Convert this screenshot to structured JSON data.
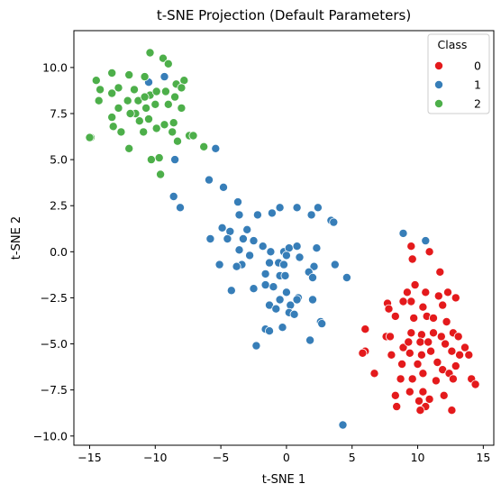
{
  "chart_data": {
    "type": "scatter",
    "title": "t-SNE Projection (Default Parameters)",
    "xlabel": "t-SNE 1",
    "ylabel": "t-SNE 2",
    "xlim": [
      -16.2,
      15.8
    ],
    "ylim": [
      -10.5,
      12.0
    ],
    "xticks": [
      -15,
      -10,
      -5,
      0,
      5,
      10,
      15
    ],
    "yticks": [
      -10.0,
      -7.5,
      -5.0,
      -2.5,
      0.0,
      2.5,
      5.0,
      7.5,
      10.0
    ],
    "grid": false,
    "legend": {
      "title": "Class",
      "position": "top-right"
    },
    "series": [
      {
        "name": "0",
        "color": "#e41a1c",
        "points": [
          [
            9.5,
            0.3
          ],
          [
            9.6,
            -0.4
          ],
          [
            10.9,
            0.0
          ],
          [
            9.8,
            -1.8
          ],
          [
            11.7,
            -1.1
          ],
          [
            9.2,
            -2.2
          ],
          [
            9.5,
            -2.7
          ],
          [
            10.6,
            -2.2
          ],
          [
            11.6,
            -2.4
          ],
          [
            12.3,
            -2.2
          ],
          [
            12.9,
            -2.5
          ],
          [
            7.7,
            -2.8
          ],
          [
            8.9,
            -2.7
          ],
          [
            10.4,
            -3.0
          ],
          [
            11.9,
            -2.9
          ],
          [
            7.8,
            -3.1
          ],
          [
            8.3,
            -3.5
          ],
          [
            9.7,
            -3.6
          ],
          [
            10.7,
            -3.5
          ],
          [
            11.2,
            -3.6
          ],
          [
            12.2,
            -3.8
          ],
          [
            6.0,
            -4.2
          ],
          [
            7.6,
            -4.6
          ],
          [
            7.9,
            -4.6
          ],
          [
            9.5,
            -4.4
          ],
          [
            10.3,
            -4.5
          ],
          [
            11.2,
            -4.4
          ],
          [
            11.8,
            -4.6
          ],
          [
            12.7,
            -4.4
          ],
          [
            13.1,
            -4.6
          ],
          [
            6.0,
            -5.4
          ],
          [
            8.9,
            -5.2
          ],
          [
            9.3,
            -4.9
          ],
          [
            10.2,
            -4.9
          ],
          [
            10.8,
            -4.9
          ],
          [
            12.1,
            -5.0
          ],
          [
            13.6,
            -5.2
          ],
          [
            8.0,
            -5.6
          ],
          [
            9.4,
            -5.5
          ],
          [
            10.3,
            -5.6
          ],
          [
            11.0,
            -5.4
          ],
          [
            12.6,
            -5.4
          ],
          [
            13.2,
            -5.6
          ],
          [
            13.9,
            -5.6
          ],
          [
            8.8,
            -6.1
          ],
          [
            10.0,
            -6.1
          ],
          [
            11.5,
            -6.0
          ],
          [
            12.9,
            -6.2
          ],
          [
            6.7,
            -6.6
          ],
          [
            10.4,
            -6.6
          ],
          [
            11.9,
            -6.4
          ],
          [
            12.4,
            -6.6
          ],
          [
            9.6,
            -6.9
          ],
          [
            8.7,
            -6.9
          ],
          [
            11.4,
            -7.0
          ],
          [
            12.7,
            -6.9
          ],
          [
            14.1,
            -6.9
          ],
          [
            14.4,
            -7.2
          ],
          [
            10.4,
            -7.6
          ],
          [
            9.4,
            -7.6
          ],
          [
            12.0,
            -7.8
          ],
          [
            8.3,
            -7.8
          ],
          [
            10.1,
            -8.1
          ],
          [
            10.9,
            -8.0
          ],
          [
            8.4,
            -8.4
          ],
          [
            10.6,
            -8.4
          ],
          [
            10.2,
            -8.6
          ],
          [
            12.6,
            -8.6
          ],
          [
            5.8,
            -5.5
          ]
        ]
      },
      {
        "name": "1",
        "color": "#377eb8",
        "points": [
          [
            -9.3,
            9.5
          ],
          [
            -10.5,
            9.2
          ],
          [
            -5.4,
            5.6
          ],
          [
            -8.5,
            5.0
          ],
          [
            -5.9,
            3.9
          ],
          [
            -4.8,
            3.5
          ],
          [
            -8.6,
            3.0
          ],
          [
            -8.1,
            2.4
          ],
          [
            -3.7,
            2.7
          ],
          [
            -3.6,
            2.0
          ],
          [
            -2.2,
            2.0
          ],
          [
            -0.5,
            2.4
          ],
          [
            0.8,
            2.4
          ],
          [
            2.4,
            2.4
          ],
          [
            -1.1,
            2.1
          ],
          [
            1.9,
            2.0
          ],
          [
            3.4,
            1.7
          ],
          [
            3.6,
            1.6
          ],
          [
            -4.9,
            1.3
          ],
          [
            -4.3,
            1.1
          ],
          [
            -3.0,
            1.2
          ],
          [
            -5.8,
            0.7
          ],
          [
            -4.5,
            0.7
          ],
          [
            -3.3,
            0.7
          ],
          [
            -2.5,
            0.6
          ],
          [
            -1.8,
            0.3
          ],
          [
            -1.2,
            0.0
          ],
          [
            -0.2,
            0.0
          ],
          [
            0.2,
            0.2
          ],
          [
            0.8,
            0.3
          ],
          [
            2.3,
            0.2
          ],
          [
            -3.6,
            0.1
          ],
          [
            -2.8,
            -0.2
          ],
          [
            0.0,
            -0.2
          ],
          [
            1.0,
            -0.3
          ],
          [
            -1.3,
            -0.6
          ],
          [
            -0.6,
            -0.6
          ],
          [
            -3.4,
            -0.7
          ],
          [
            -3.8,
            -0.8
          ],
          [
            -5.1,
            -0.7
          ],
          [
            2.1,
            -0.8
          ],
          [
            3.7,
            -0.7
          ],
          [
            -1.6,
            -1.2
          ],
          [
            -0.2,
            -0.7
          ],
          [
            -0.5,
            -1.3
          ],
          [
            -0.1,
            -1.3
          ],
          [
            1.7,
            -1.1
          ],
          [
            2.0,
            -1.4
          ],
          [
            4.6,
            -1.4
          ],
          [
            -1.6,
            -1.8
          ],
          [
            -1.0,
            -1.9
          ],
          [
            -2.5,
            -2.0
          ],
          [
            -4.2,
            -2.1
          ],
          [
            0.0,
            -2.2
          ],
          [
            0.9,
            -2.5
          ],
          [
            -1.3,
            -2.9
          ],
          [
            0.3,
            -2.9
          ],
          [
            -0.5,
            -2.6
          ],
          [
            0.8,
            -2.6
          ],
          [
            2.0,
            -2.6
          ],
          [
            -0.8,
            -3.1
          ],
          [
            0.2,
            -3.3
          ],
          [
            0.6,
            -3.4
          ],
          [
            -1.6,
            -4.2
          ],
          [
            -1.3,
            -4.3
          ],
          [
            -0.3,
            -4.1
          ],
          [
            -2.3,
            -5.1
          ],
          [
            1.8,
            -4.8
          ],
          [
            2.6,
            -3.8
          ],
          [
            2.7,
            -3.9
          ],
          [
            8.9,
            1.0
          ],
          [
            10.6,
            0.6
          ],
          [
            4.3,
            -9.4
          ]
        ]
      },
      {
        "name": "2",
        "color": "#4daf4a",
        "points": [
          [
            -10.4,
            10.8
          ],
          [
            -9.4,
            10.5
          ],
          [
            -9.0,
            10.2
          ],
          [
            -13.3,
            9.7
          ],
          [
            -12.0,
            9.6
          ],
          [
            -14.5,
            9.3
          ],
          [
            -10.8,
            9.5
          ],
          [
            -8.4,
            9.1
          ],
          [
            -7.8,
            9.3
          ],
          [
            -12.8,
            8.9
          ],
          [
            -11.6,
            8.8
          ],
          [
            -10.4,
            8.5
          ],
          [
            -9.9,
            8.7
          ],
          [
            -9.2,
            8.7
          ],
          [
            -8.0,
            8.9
          ],
          [
            -14.2,
            8.8
          ],
          [
            -12.1,
            8.2
          ],
          [
            -11.3,
            8.2
          ],
          [
            -10.8,
            8.4
          ],
          [
            -13.3,
            8.6
          ],
          [
            -8.5,
            8.4
          ],
          [
            -14.3,
            8.2
          ],
          [
            -12.8,
            7.8
          ],
          [
            -11.5,
            7.5
          ],
          [
            -10.7,
            7.8
          ],
          [
            -10.0,
            8.0
          ],
          [
            -9.0,
            8.0
          ],
          [
            -8.0,
            7.8
          ],
          [
            -13.3,
            7.3
          ],
          [
            -11.9,
            7.5
          ],
          [
            -11.2,
            7.1
          ],
          [
            -10.5,
            7.2
          ],
          [
            -9.3,
            6.9
          ],
          [
            -8.7,
            6.5
          ],
          [
            -8.6,
            7.0
          ],
          [
            -13.2,
            6.8
          ],
          [
            -12.6,
            6.5
          ],
          [
            -10.9,
            6.5
          ],
          [
            -9.9,
            6.7
          ],
          [
            -8.3,
            6.0
          ],
          [
            -7.4,
            6.3
          ],
          [
            -7.1,
            6.3
          ],
          [
            -14.9,
            6.2
          ],
          [
            -15.0,
            6.2
          ],
          [
            -6.3,
            5.7
          ],
          [
            -12.0,
            5.6
          ],
          [
            -10.3,
            5.0
          ],
          [
            -9.7,
            5.1
          ],
          [
            -9.6,
            4.2
          ]
        ]
      }
    ]
  }
}
